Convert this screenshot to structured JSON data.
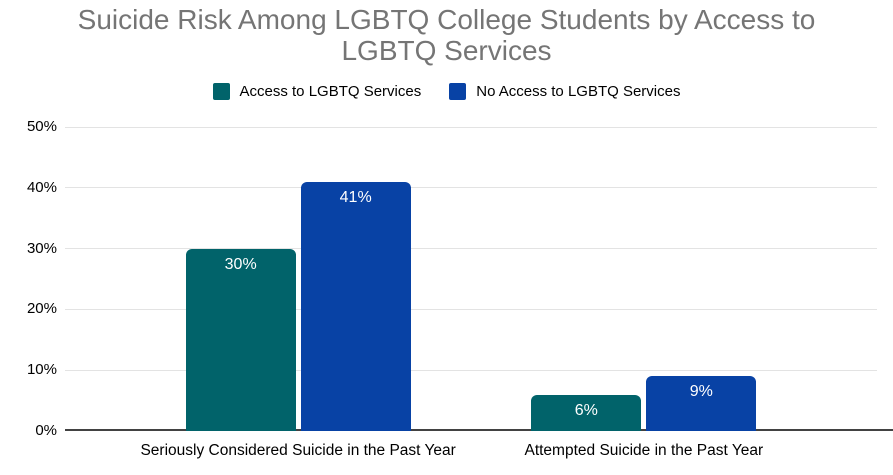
{
  "chart_data": {
    "type": "bar",
    "title": "Suicide Risk Among LGBTQ College Students by Access to LGBTQ Services",
    "categories": [
      "Seriously Considered Suicide in the Past Year",
      "Attempted Suicide in the Past Year"
    ],
    "series": [
      {
        "name": "Access to LGBTQ Services",
        "color": "#01636a",
        "values": [
          30,
          6
        ],
        "data_labels": [
          "30%",
          "6%"
        ]
      },
      {
        "name": "No Access to LGBTQ Services",
        "color": "#0842a5",
        "values": [
          41,
          9
        ],
        "data_labels": [
          "41%",
          "9%"
        ]
      }
    ],
    "xlabel": "",
    "ylabel": "",
    "ylim": [
      0,
      50
    ],
    "yticks": [
      {
        "value": 0,
        "label": "0%"
      },
      {
        "value": 10,
        "label": "10%"
      },
      {
        "value": 20,
        "label": "20%"
      },
      {
        "value": 30,
        "label": "30%"
      },
      {
        "value": 40,
        "label": "40%"
      },
      {
        "value": 50,
        "label": "50%"
      }
    ],
    "grid": true,
    "legend_position": "top",
    "colors": {
      "title_text": "#757575",
      "axis_text": "#000000",
      "gridline": "#e3e3e3",
      "baseline": "#424242",
      "data_label_text": "#ffffff",
      "background": "#ffffff"
    }
  }
}
